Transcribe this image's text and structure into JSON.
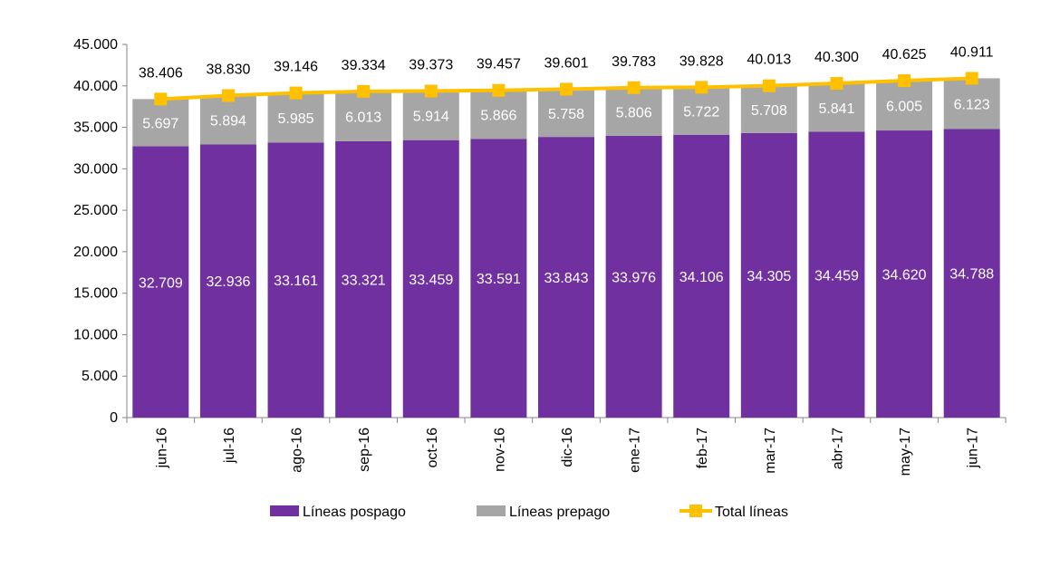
{
  "chart_data": {
    "type": "bar",
    "stacked": true,
    "categories": [
      "jun-16",
      "jul-16",
      "ago-16",
      "sep-16",
      "oct-16",
      "nov-16",
      "dic-16",
      "ene-17",
      "feb-17",
      "mar-17",
      "abr-17",
      "may-17",
      "jun-17"
    ],
    "series": [
      {
        "name": "Líneas pospago",
        "kind": "bar",
        "color": "#7030a0",
        "values": [
          32709,
          32936,
          33161,
          33321,
          33459,
          33591,
          33843,
          33976,
          34106,
          34305,
          34459,
          34620,
          34788
        ],
        "labels": [
          "32.709",
          "32.936",
          "33.161",
          "33.321",
          "33.459",
          "33.591",
          "33.843",
          "33.976",
          "34.106",
          "34.305",
          "34.459",
          "34.620",
          "34.788"
        ]
      },
      {
        "name": "Líneas prepago",
        "kind": "bar",
        "color": "#a6a6a6",
        "values": [
          5697,
          5894,
          5985,
          6013,
          5914,
          5866,
          5758,
          5806,
          5722,
          5708,
          5841,
          6005,
          6123
        ],
        "labels": [
          "5.697",
          "5.894",
          "5.985",
          "6.013",
          "5.914",
          "5.866",
          "5.758",
          "5.806",
          "5.722",
          "5.708",
          "5.841",
          "6.005",
          "6.123"
        ]
      },
      {
        "name": "Total líneas",
        "kind": "line",
        "color": "#ffc000",
        "values": [
          38406,
          38830,
          39146,
          39334,
          39373,
          39457,
          39601,
          39783,
          39828,
          40013,
          40300,
          40625,
          40911
        ],
        "labels": [
          "38.406",
          "38.830",
          "39.146",
          "39.334",
          "39.373",
          "39.457",
          "39.601",
          "39.783",
          "39.828",
          "40.013",
          "40.300",
          "40.625",
          "40.911"
        ]
      }
    ],
    "yticks": [
      0,
      5000,
      10000,
      15000,
      20000,
      25000,
      30000,
      35000,
      40000,
      45000
    ],
    "ytick_labels": [
      "0",
      "5.000",
      "10.000",
      "15.000",
      "20.000",
      "25.000",
      "30.000",
      "35.000",
      "40.000",
      "45.000"
    ],
    "ylim": [
      0,
      45000
    ],
    "grid": false,
    "legend_position": "bottom",
    "title": "",
    "xlabel": "",
    "ylabel": ""
  }
}
